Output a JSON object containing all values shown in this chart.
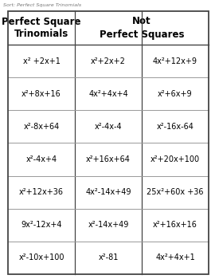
{
  "title": "Sort: Perfect Square Trinomials",
  "header_left": "Perfect Square\nTrinomials",
  "header_right": "Not\nPerfect Squares",
  "col1": [
    "x² +2x+1",
    "x²+8x+16",
    "x²-8x+64",
    "x²-4x+4",
    "x²+12x+36",
    "9x²-12x+4",
    "x²-10x+100"
  ],
  "col2": [
    "x²+2x+2",
    "4x²+4x+4",
    "x²-4x-4",
    "x²+16x+64",
    "4x²-14x+49",
    "x²-14x+49",
    "x²-81"
  ],
  "col3": [
    "4x²+12x+9",
    "x²+6x+9",
    "x²-16x-64",
    "x²+20x+100",
    "25x²+60x +36",
    "x²+16x+16",
    "4x²+4x+1"
  ],
  "bg_color": "#ffffff",
  "grid_color": "#999999",
  "border_color": "#444444",
  "text_color": "#000000",
  "title_color": "#777777",
  "title_fontsize": 4.5,
  "header_fontsize": 8.5,
  "cell_fontsize": 7.0
}
